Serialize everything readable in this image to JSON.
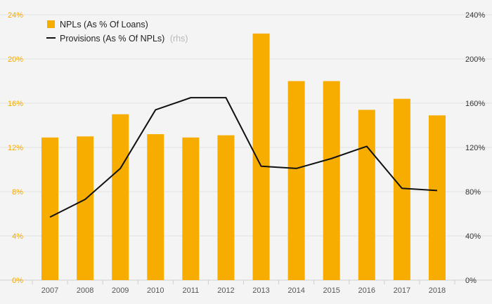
{
  "chart_data": {
    "type": "bar",
    "categories": [
      "2007",
      "2008",
      "2009",
      "2010",
      "2011",
      "2012",
      "2013",
      "2014",
      "2015",
      "2016",
      "2017",
      "2018"
    ],
    "series": [
      {
        "name": "NPLs (As % Of Loans)",
        "type": "bar",
        "axis": "left",
        "color": "#f7ad00",
        "values": [
          12.9,
          13.0,
          15.0,
          13.2,
          12.9,
          13.1,
          22.3,
          18.0,
          18.0,
          15.4,
          16.4,
          14.9
        ]
      },
      {
        "name": "Provisions (As % Of NPLs)",
        "name_note": "(rhs)",
        "type": "line",
        "axis": "right",
        "color": "#111111",
        "values": [
          57,
          73,
          101,
          154,
          165,
          165,
          103,
          101,
          110,
          121,
          83,
          81
        ]
      }
    ],
    "y_left": {
      "ticks": [
        "0%",
        "4%",
        "8%",
        "12%",
        "16%",
        "20%",
        "24%"
      ],
      "ylim": [
        0,
        24
      ]
    },
    "y_right": {
      "ticks": [
        "0%",
        "40%",
        "80%",
        "120%",
        "160%",
        "200%",
        "240%"
      ],
      "ylim": [
        0,
        240
      ]
    },
    "legend": {
      "position": "top-left"
    },
    "grid": true,
    "colors": {
      "background": "#f4f4f4",
      "grid": "#e2e2e2",
      "left_axis_text": "#f5a800"
    }
  }
}
